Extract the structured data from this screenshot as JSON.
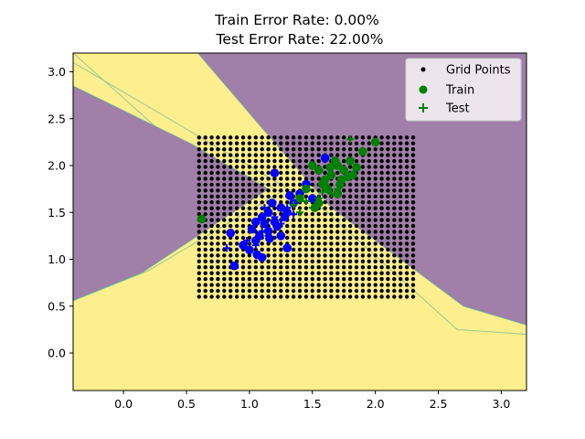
{
  "chart_data": {
    "type": "scatter",
    "title_lines": [
      "Train Error Rate: 0.00%",
      "Test Error Rate: 22.00%"
    ],
    "xlim": [
      -0.4,
      3.2
    ],
    "ylim": [
      -0.4,
      3.2
    ],
    "xticks": [
      0.0,
      0.5,
      1.0,
      1.5,
      2.0,
      2.5,
      3.0
    ],
    "yticks": [
      0.0,
      0.5,
      1.0,
      1.5,
      2.0,
      2.5,
      3.0
    ],
    "xtick_labels": [
      "0.0",
      "0.5",
      "1.0",
      "1.5",
      "2.0",
      "2.5",
      "3.0"
    ],
    "ytick_labels": [
      "0.0",
      "0.5",
      "1.0",
      "1.5",
      "2.0",
      "2.5",
      "3.0"
    ],
    "grid": false,
    "legend_position": "upper-right",
    "legend": [
      {
        "label": "Grid Points",
        "marker": "dot",
        "color": "#000000"
      },
      {
        "label": "Train",
        "marker": "circle",
        "color": "#008000"
      },
      {
        "label": "Test",
        "marker": "plus",
        "color": "#008000"
      }
    ],
    "colors": {
      "region_a": "#a07fa8",
      "region_b": "#fdee8e",
      "class_0": "#0000ff",
      "class_1": "#008000",
      "grid_points": "#000000"
    },
    "decision_regions": [
      {
        "name": "region_b",
        "polygon": [
          [
            -0.4,
            3.2
          ],
          [
            -0.4,
            3.1
          ],
          [
            1.6,
            1.52
          ],
          [
            2.65,
            0.25
          ],
          [
            3.2,
            0.2
          ],
          [
            3.2,
            -0.4
          ],
          [
            -0.4,
            -0.4
          ],
          [
            -0.4,
            0.56
          ],
          [
            0.2,
            0.88
          ],
          [
            1.25,
            1.72
          ],
          [
            0.35,
            2.3
          ],
          [
            -0.4,
            3.2
          ]
        ]
      },
      {
        "name": "region_a",
        "polygon": [
          [
            -0.4,
            2.85
          ],
          [
            0.54,
            2.23
          ],
          [
            1.15,
            1.75
          ],
          [
            0.15,
            0.86
          ],
          [
            -0.4,
            0.56
          ]
        ]
      },
      {
        "name": "region_a",
        "polygon": [
          [
            0.59,
            3.2
          ],
          [
            3.2,
            3.2
          ],
          [
            3.2,
            0.3
          ],
          [
            2.7,
            0.5
          ],
          [
            1.65,
            1.55
          ],
          [
            1.1,
            2.4
          ],
          [
            0.59,
            3.2
          ]
        ]
      }
    ],
    "grid_points": {
      "x_start": 0.6,
      "x_end": 2.3,
      "x_count": 35,
      "y_start": 0.6,
      "y_end": 2.3,
      "y_count": 28
    },
    "series": [
      {
        "name": "Train",
        "class_0": [
          [
            1.1,
            1.45
          ],
          [
            1.15,
            1.3
          ],
          [
            1.05,
            1.2
          ],
          [
            1.2,
            1.4
          ],
          [
            1.0,
            1.1
          ],
          [
            1.25,
            1.55
          ],
          [
            1.3,
            1.5
          ],
          [
            1.12,
            1.38
          ],
          [
            1.08,
            1.25
          ],
          [
            0.95,
            1.15
          ],
          [
            1.18,
            1.6
          ],
          [
            1.22,
            1.35
          ],
          [
            1.05,
            1.4
          ],
          [
            1.35,
            1.6
          ],
          [
            1.4,
            1.7
          ],
          [
            1.28,
            1.45
          ],
          [
            1.15,
            1.5
          ],
          [
            0.88,
            0.93
          ],
          [
            1.2,
            1.92
          ],
          [
            1.6,
            2.08
          ],
          [
            1.3,
            1.12
          ],
          [
            1.1,
            1.02
          ],
          [
            0.85,
            1.28
          ],
          [
            1.45,
            1.8
          ],
          [
            1.5,
            1.65
          ],
          [
            1.16,
            1.22
          ],
          [
            1.02,
            1.32
          ],
          [
            1.25,
            1.25
          ],
          [
            1.32,
            1.68
          ],
          [
            1.06,
            1.05
          ]
        ],
        "class_1": [
          [
            1.7,
            2.0
          ],
          [
            1.65,
            1.9
          ],
          [
            1.75,
            1.95
          ],
          [
            1.8,
            2.05
          ],
          [
            1.6,
            1.85
          ],
          [
            1.72,
            1.8
          ],
          [
            1.55,
            1.95
          ],
          [
            1.5,
            2.0
          ],
          [
            1.68,
            2.05
          ],
          [
            1.78,
            1.88
          ],
          [
            1.62,
            1.75
          ],
          [
            1.85,
            1.98
          ],
          [
            1.9,
            2.15
          ],
          [
            2.0,
            2.25
          ],
          [
            1.7,
            1.7
          ],
          [
            1.58,
            1.8
          ],
          [
            1.45,
            1.75
          ],
          [
            1.4,
            1.65
          ],
          [
            1.55,
            1.6
          ],
          [
            0.62,
            1.43
          ],
          [
            1.52,
            1.55
          ],
          [
            1.73,
            1.85
          ],
          [
            1.64,
            1.98
          ],
          [
            1.82,
            1.9
          ]
        ]
      },
      {
        "name": "Test",
        "class_0": [
          [
            1.1,
            1.3
          ],
          [
            1.2,
            1.45
          ],
          [
            1.05,
            1.15
          ],
          [
            1.3,
            1.55
          ],
          [
            1.15,
            1.25
          ],
          [
            1.25,
            1.38
          ],
          [
            0.98,
            1.2
          ],
          [
            1.35,
            1.48
          ],
          [
            1.12,
            1.55
          ],
          [
            0.82,
            1.12
          ]
        ],
        "class_1": [
          [
            1.6,
            1.8
          ],
          [
            1.55,
            1.65
          ],
          [
            1.5,
            1.55
          ],
          [
            1.65,
            1.7
          ],
          [
            1.45,
            1.62
          ],
          [
            1.7,
            1.75
          ],
          [
            1.8,
            2.28
          ],
          [
            1.4,
            1.5
          ],
          [
            1.35,
            1.58
          ],
          [
            1.58,
            1.72
          ]
        ]
      }
    ]
  }
}
